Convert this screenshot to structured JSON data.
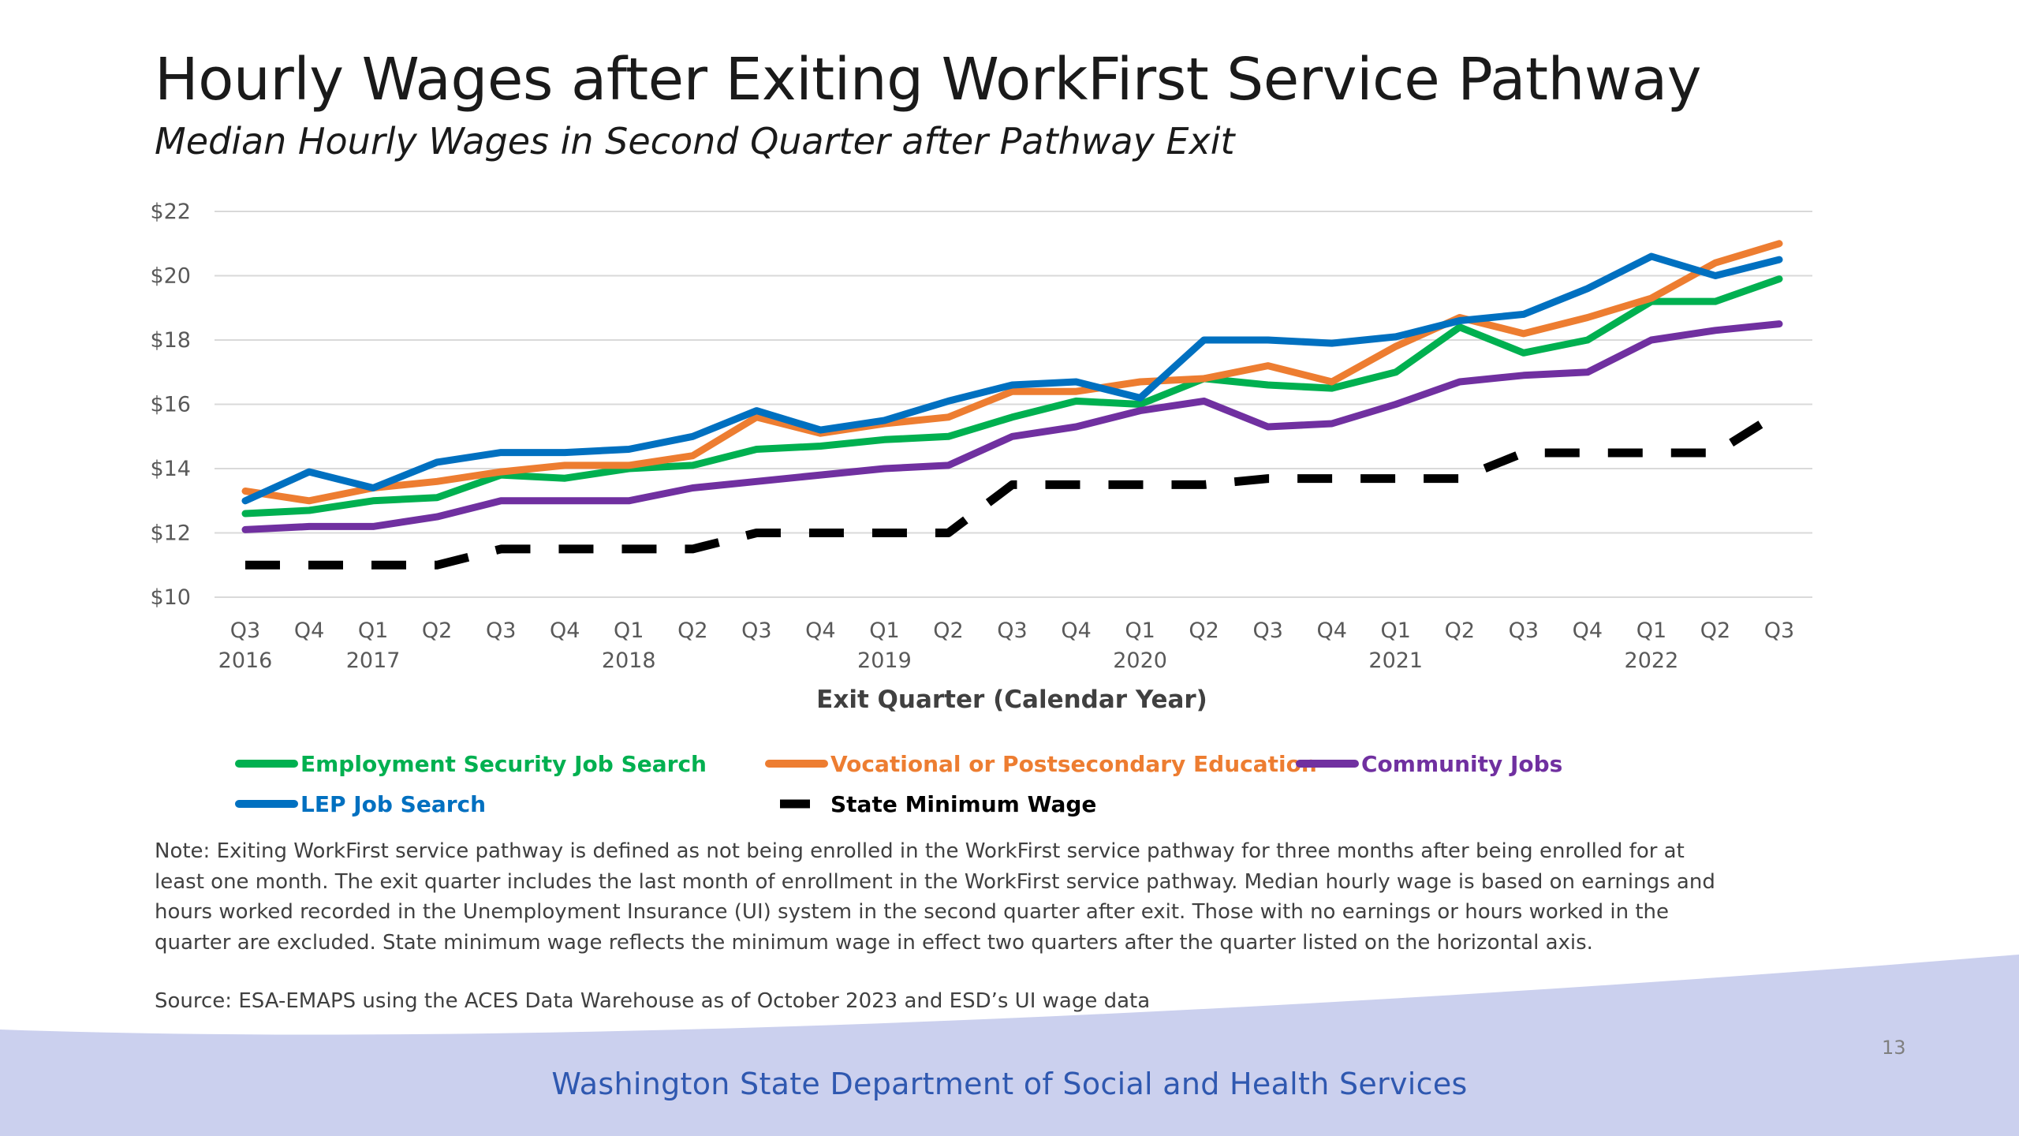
{
  "slide": {
    "title": "Hourly Wages after Exiting WorkFirst Service Pathway",
    "subtitle": "Median Hourly Wages in Second Quarter after Pathway Exit",
    "note": "Note: Exiting WorkFirst service pathway is defined as not being enrolled in the WorkFirst service pathway for three months after being enrolled for at least one month. The exit quarter includes the last month of enrollment in the WorkFirst service pathway. Median hourly wage is based on earnings and hours worked recorded in the Unemployment Insurance (UI) system in the second quarter after exit. Those with no earnings or hours worked in the quarter are excluded. State minimum wage reflects the minimum wage in effect two quarters after the quarter listed on the horizontal axis.",
    "source": "Source: ESA-EMAPS using the ACES Data Warehouse as of October 2023 and ESD’s UI wage data",
    "page_number": "13",
    "footer": "Washington State Department of Social and Health Services",
    "footer_band_color": "#cbd0ee"
  },
  "chart_data": {
    "type": "line",
    "xlabel": "Exit Quarter (Calendar Year)",
    "ylabel": "",
    "ylim": [
      10,
      22
    ],
    "yticks": [
      10,
      12,
      14,
      16,
      18,
      20,
      22
    ],
    "ytick_labels": [
      "$10",
      "$12",
      "$14",
      "$16",
      "$18",
      "$20",
      "$22"
    ],
    "grid": true,
    "legend_position": "bottom",
    "categories": [
      "Q3 2016",
      "Q4 2016",
      "Q1 2017",
      "Q2 2017",
      "Q3 2017",
      "Q4 2017",
      "Q1 2018",
      "Q2 2018",
      "Q3 2018",
      "Q4 2018",
      "Q1 2019",
      "Q2 2019",
      "Q3 2019",
      "Q4 2019",
      "Q1 2020",
      "Q2 2020",
      "Q3 2020",
      "Q4 2020",
      "Q1 2021",
      "Q2 2021",
      "Q3 2021",
      "Q4 2021",
      "Q1 2022",
      "Q2 2022",
      "Q3 2022"
    ],
    "tick_quarters": [
      "Q3",
      "Q4",
      "Q1",
      "Q2",
      "Q3",
      "Q4",
      "Q1",
      "Q2",
      "Q3",
      "Q4",
      "Q1",
      "Q2",
      "Q3",
      "Q4",
      "Q1",
      "Q2",
      "Q3",
      "Q4",
      "Q1",
      "Q2",
      "Q3",
      "Q4",
      "Q1",
      "Q2",
      "Q3"
    ],
    "tick_years": [
      "2016",
      "",
      "2017",
      "",
      "",
      "",
      "2018",
      "",
      "",
      "",
      "2019",
      "",
      "",
      "",
      "2020",
      "",
      "",
      "",
      "2021",
      "",
      "",
      "",
      "2022",
      "",
      ""
    ],
    "series": [
      {
        "name": "Employment Security Job Search",
        "color": "#00b050",
        "dashed": false,
        "values": [
          12.6,
          12.7,
          13.0,
          13.1,
          13.8,
          13.7,
          14.0,
          14.1,
          14.6,
          14.7,
          14.9,
          15.0,
          15.6,
          16.1,
          16.0,
          16.8,
          16.6,
          16.5,
          17.0,
          18.4,
          17.6,
          18.0,
          19.2,
          19.2,
          19.9
        ]
      },
      {
        "name": "Vocational or Postsecondary Education",
        "color": "#ed7d31",
        "dashed": false,
        "values": [
          13.3,
          13.0,
          13.4,
          13.6,
          13.9,
          14.1,
          14.1,
          14.4,
          15.6,
          15.1,
          15.4,
          15.6,
          16.4,
          16.4,
          16.7,
          16.8,
          17.2,
          16.7,
          17.8,
          18.7,
          18.2,
          18.7,
          19.3,
          20.4,
          21.0
        ]
      },
      {
        "name": "Community Jobs",
        "color": "#7030a0",
        "dashed": false,
        "values": [
          12.1,
          12.2,
          12.2,
          12.5,
          13.0,
          13.0,
          13.0,
          13.4,
          13.6,
          13.8,
          14.0,
          14.1,
          15.0,
          15.3,
          15.8,
          16.1,
          15.3,
          15.4,
          16.0,
          16.7,
          16.9,
          17.0,
          18.0,
          18.3,
          18.5
        ]
      },
      {
        "name": "LEP Job Search",
        "color": "#0070c0",
        "dashed": false,
        "values": [
          13.0,
          13.9,
          13.4,
          14.2,
          14.5,
          14.5,
          14.6,
          15.0,
          15.8,
          15.2,
          15.5,
          16.1,
          16.6,
          16.7,
          16.2,
          18.0,
          18.0,
          17.9,
          18.1,
          18.6,
          18.8,
          19.6,
          20.6,
          20.0,
          20.5
        ]
      },
      {
        "name": "State Minimum Wage",
        "color": "#000000",
        "dashed": true,
        "values": [
          11.0,
          11.0,
          11.0,
          11.0,
          11.5,
          11.5,
          11.5,
          11.5,
          12.0,
          12.0,
          12.0,
          12.0,
          13.5,
          13.5,
          13.5,
          13.5,
          13.69,
          13.69,
          13.69,
          13.69,
          14.49,
          14.49,
          14.49,
          14.49,
          15.74
        ]
      }
    ]
  }
}
